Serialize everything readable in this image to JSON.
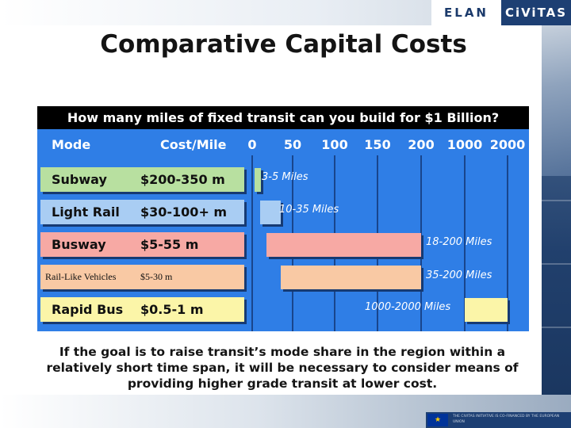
{
  "header": {
    "logo_left": "ELAN",
    "logo_right": "CiViTAS"
  },
  "slide": {
    "title": "Comparative Capital Costs",
    "note": "If the goal is to raise transit’s mode share in the region within a relatively short time span, it will be necessary to consider means of providing higher grade transit at lower cost."
  },
  "footer": {
    "eu_text": "THE CIVITAS INITIATIVE IS CO-FINANCED BY THE EUROPEAN UNION"
  },
  "colors": {
    "accent": "#2f7ee6",
    "header": "#000000"
  },
  "chart_data": {
    "type": "bar",
    "title": "How many miles of fixed transit can you build for $1 Billion?",
    "column_headers": {
      "mode": "Mode",
      "cost": "Cost/Mile"
    },
    "ticks": [
      "0",
      "50",
      "100",
      "150",
      "200",
      "1000",
      "2000"
    ],
    "x_unit": "Miles",
    "rows": [
      {
        "mode": "Subway",
        "cost": "$200-350 m",
        "range_miles": [
          3,
          5
        ],
        "label": "3-5 Miles",
        "color": "#b8e0a0"
      },
      {
        "mode": "Light Rail",
        "cost": "$30-100+ m",
        "range_miles": [
          10,
          35
        ],
        "label": "10-35 Miles",
        "color": "#a9cdf3"
      },
      {
        "mode": "Busway",
        "cost": "$5-55 m",
        "range_miles": [
          18,
          200
        ],
        "label": "18-200 Miles",
        "color": "#f7a9a4"
      },
      {
        "mode": "Rail-Like Vehicles",
        "cost": "$5-30 m",
        "range_miles": [
          35,
          200
        ],
        "label": "35-200 Miles",
        "color": "#f9c9a4"
      },
      {
        "mode": "Rapid Bus",
        "cost": "$0.5-1 m",
        "range_miles": [
          1000,
          2000
        ],
        "label": "1000-2000 Miles",
        "color": "#fbf5a8"
      }
    ]
  }
}
